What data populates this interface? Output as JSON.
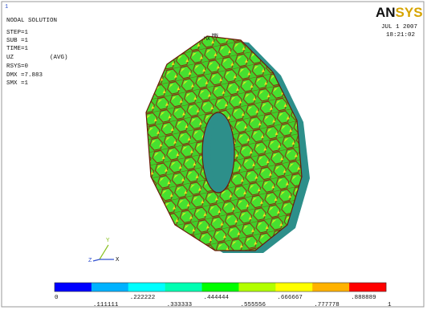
{
  "header": {
    "index": "1",
    "title": "NODAL SOLUTION",
    "logo": "ANSYS",
    "date": "JUL  1 2007",
    "time": "18:21:02"
  },
  "info": {
    "step": "STEP=1",
    "sub": "SUB =1",
    "time": "TIME=1",
    "item": "UZ",
    "avg": "(AVG)",
    "rsys": "RSYS=0",
    "dmx": "DMX =7.883",
    "smx": "SMX =1"
  },
  "markers": {
    "max": "MX",
    "min": "MN"
  },
  "triad": {
    "x": "X",
    "y": "Y",
    "z": "Z"
  },
  "legend": {
    "labels": [
      "0",
      ".111111",
      ".222222",
      ".333333",
      ".444444",
      ".555556",
      ".666667",
      ".777778",
      ".888889",
      "1"
    ],
    "colors": [
      "#0000ff",
      "#00b2ff",
      "#00ffff",
      "#00ffb2",
      "#00ff00",
      "#b2ff00",
      "#ffff00",
      "#ffb200",
      "#ff0000"
    ]
  }
}
